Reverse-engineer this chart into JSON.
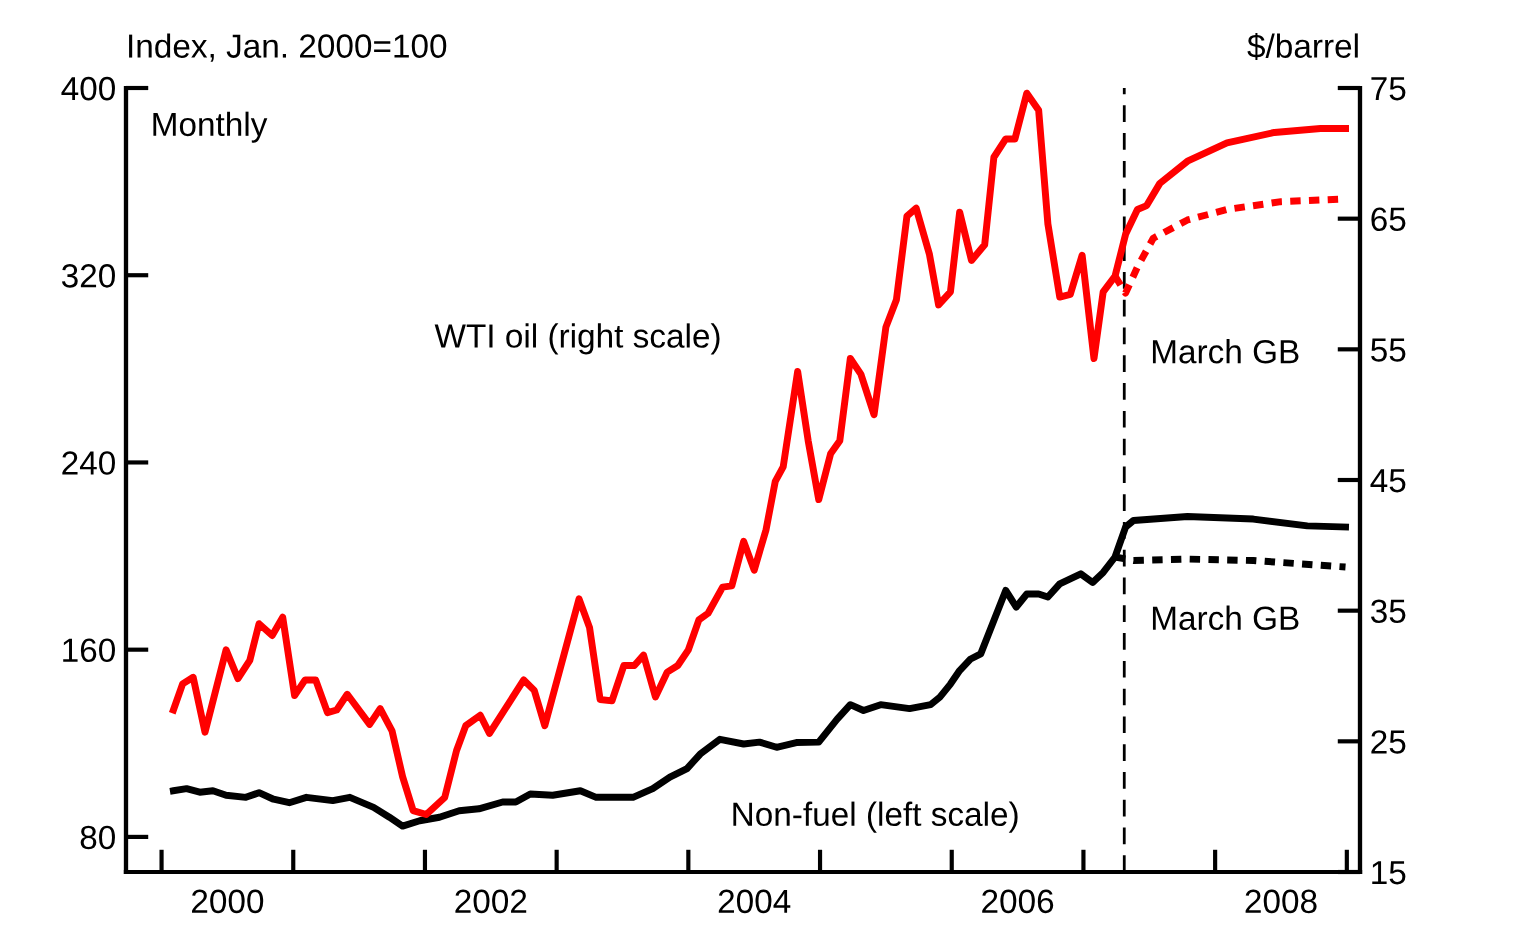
{
  "chart_data": {
    "type": "line",
    "ylabel": "Index, Jan. 2000=100",
    "y2label": "$/barrel",
    "annotations": [
      "Monthly"
    ],
    "xlim": [
      1999.73,
      2009.1
    ],
    "xticks": [
      {
        "value": 2000,
        "label": null
      },
      {
        "value": 2001,
        "label": null
      },
      {
        "value": 2002,
        "label": null
      },
      {
        "value": 2003,
        "label": null
      },
      {
        "value": 2004,
        "label": null
      },
      {
        "value": 2005,
        "label": null
      },
      {
        "value": 2006,
        "label": null
      },
      {
        "value": 2007,
        "label": null
      },
      {
        "value": 2008,
        "label": null
      },
      {
        "value": 2009,
        "label": null
      },
      {
        "value": 2000.5,
        "label": "2000"
      },
      {
        "value": 2002.5,
        "label": "2002"
      },
      {
        "value": 2004.5,
        "label": "2004"
      },
      {
        "value": 2006.5,
        "label": "2006"
      },
      {
        "value": 2008.5,
        "label": "2008"
      }
    ],
    "ylim": [
      65,
      400
    ],
    "yticks": [
      80,
      160,
      240,
      320,
      400
    ],
    "y2lim": [
      15,
      75
    ],
    "y2ticks": [
      15,
      25,
      35,
      45,
      55,
      65,
      75
    ],
    "grid": false,
    "legend": false,
    "ref_lines": [
      {
        "axis": "x",
        "value": 2007.31,
        "color": "#000000",
        "line_style": "dashed"
      }
    ],
    "series": [
      {
        "name": "WTI oil (right scale)",
        "axis": "y2",
        "color": "#ff0000",
        "line_style": "solid",
        "x": [
          2000.09,
          2000.16,
          2000.24,
          2000.33,
          2000.49,
          2000.58,
          2000.67,
          2000.74,
          2000.84,
          2000.92,
          2001.01,
          2001.09,
          2001.17,
          2001.26,
          2001.33,
          2001.41,
          2001.58,
          2001.66,
          2001.75,
          2001.83,
          2001.91,
          2002.01,
          2002.15,
          2002.24,
          2002.31,
          2002.42,
          2002.49,
          2002.75,
          2002.83,
          2002.91,
          2003.17,
          2003.25,
          2003.33,
          2003.42,
          2003.51,
          2003.59,
          2003.66,
          2003.75,
          2003.84,
          2003.92,
          2004.0,
          2004.08,
          2004.15,
          2004.26,
          2004.33,
          2004.42,
          2004.5,
          2004.59,
          2004.66,
          2004.72,
          2004.83,
          2004.91,
          2004.99,
          2005.08,
          2005.15,
          2005.23,
          2005.31,
          2005.41,
          2005.5,
          2005.58,
          2005.66,
          2005.73,
          2005.83,
          2005.9,
          2005.99,
          2006.06,
          2006.15,
          2006.25,
          2006.32,
          2006.41,
          2006.48,
          2006.57,
          2006.66,
          2006.73,
          2006.82,
          2006.9,
          2006.99,
          2007.08,
          2007.15,
          2007.24,
          2007.32,
          2007.41,
          2007.48,
          2007.58,
          2007.79,
          2008.09,
          2008.45,
          2008.8,
          2008.99
        ],
        "values": [
          27.4,
          29.4,
          29.9,
          25.7,
          32.0,
          29.8,
          31.2,
          34.0,
          33.1,
          34.5,
          28.5,
          29.7,
          29.7,
          27.2,
          27.4,
          28.6,
          26.3,
          27.5,
          25.8,
          22.3,
          19.7,
          19.4,
          20.7,
          24.3,
          26.2,
          27.0,
          25.6,
          29.7,
          28.9,
          26.2,
          35.9,
          33.7,
          28.2,
          28.1,
          30.8,
          30.8,
          31.6,
          28.4,
          30.3,
          30.8,
          32.0,
          34.3,
          34.8,
          36.8,
          36.9,
          40.3,
          38.1,
          41.2,
          44.9,
          46.0,
          53.3,
          48.0,
          43.5,
          47.0,
          48.0,
          54.3,
          53.1,
          50.0,
          56.7,
          58.8,
          65.2,
          65.8,
          62.3,
          58.4,
          59.4,
          65.5,
          61.8,
          63.0,
          69.7,
          71.1,
          71.1,
          74.6,
          73.3,
          64.6,
          59.0,
          59.2,
          62.2,
          54.3,
          59.4,
          60.6,
          63.8,
          65.7,
          66.0,
          67.7,
          69.4,
          70.8,
          71.6,
          71.9,
          71.9
        ]
      },
      {
        "name": "March GB",
        "axis": "y2",
        "color": "#ff0000",
        "line_style": "dotted",
        "x": [
          2007.24,
          2007.32,
          2007.41,
          2007.53,
          2007.79,
          2008.09,
          2008.5,
          2008.96
        ],
        "values": [
          60.6,
          59.3,
          61.3,
          63.5,
          64.9,
          65.7,
          66.3,
          66.5
        ]
      },
      {
        "name": "Non-fuel (left scale)",
        "axis": "y",
        "color": "#000000",
        "line_style": "solid",
        "x": [
          2000.09,
          2000.19,
          2000.29,
          2000.39,
          2000.49,
          2000.64,
          2000.74,
          2000.85,
          2000.97,
          2001.1,
          2001.3,
          2001.43,
          2001.61,
          2001.73,
          2001.83,
          2001.96,
          2002.11,
          2002.26,
          2002.41,
          2002.59,
          2002.69,
          2002.8,
          2002.97,
          2003.18,
          2003.3,
          2003.58,
          2003.73,
          2003.86,
          2003.99,
          2004.09,
          2004.24,
          2004.42,
          2004.54,
          2004.67,
          2004.82,
          2004.99,
          2005.13,
          2005.23,
          2005.33,
          2005.46,
          2005.68,
          2005.84,
          2005.91,
          2005.99,
          2006.06,
          2006.14,
          2006.22,
          2006.32,
          2006.41,
          2006.49,
          2006.57,
          2006.66,
          2006.73,
          2006.82,
          2006.98,
          2007.07,
          2007.15,
          2007.24,
          2007.32,
          2007.38,
          2007.79,
          2008.29,
          2008.7,
          2008.99
        ],
        "values": [
          99.7,
          100.6,
          99.1,
          99.7,
          97.8,
          96.9,
          98.9,
          96.1,
          94.6,
          96.9,
          95.5,
          96.9,
          92.6,
          88.4,
          84.6,
          86.9,
          88.4,
          91.2,
          92.0,
          94.9,
          94.9,
          98.3,
          97.8,
          99.7,
          96.9,
          96.9,
          100.6,
          105.5,
          109.2,
          115.4,
          121.7,
          119.7,
          120.5,
          118.3,
          120.3,
          120.5,
          130.3,
          136.5,
          134.0,
          136.5,
          134.8,
          136.5,
          139.7,
          145.3,
          151.1,
          155.9,
          158.2,
          172.5,
          185.3,
          178.2,
          183.8,
          183.8,
          182.5,
          188.1,
          192.4,
          188.7,
          193.0,
          199.6,
          212.4,
          215.2,
          216.9,
          215.8,
          212.9,
          212.4
        ]
      },
      {
        "name": "March GB",
        "axis": "y",
        "color": "#000000",
        "line_style": "dotted",
        "x": [
          2007.24,
          2007.38,
          2007.79,
          2008.29,
          2008.99
        ],
        "values": [
          199.6,
          198.1,
          198.7,
          198.1,
          195.3
        ]
      }
    ]
  }
}
